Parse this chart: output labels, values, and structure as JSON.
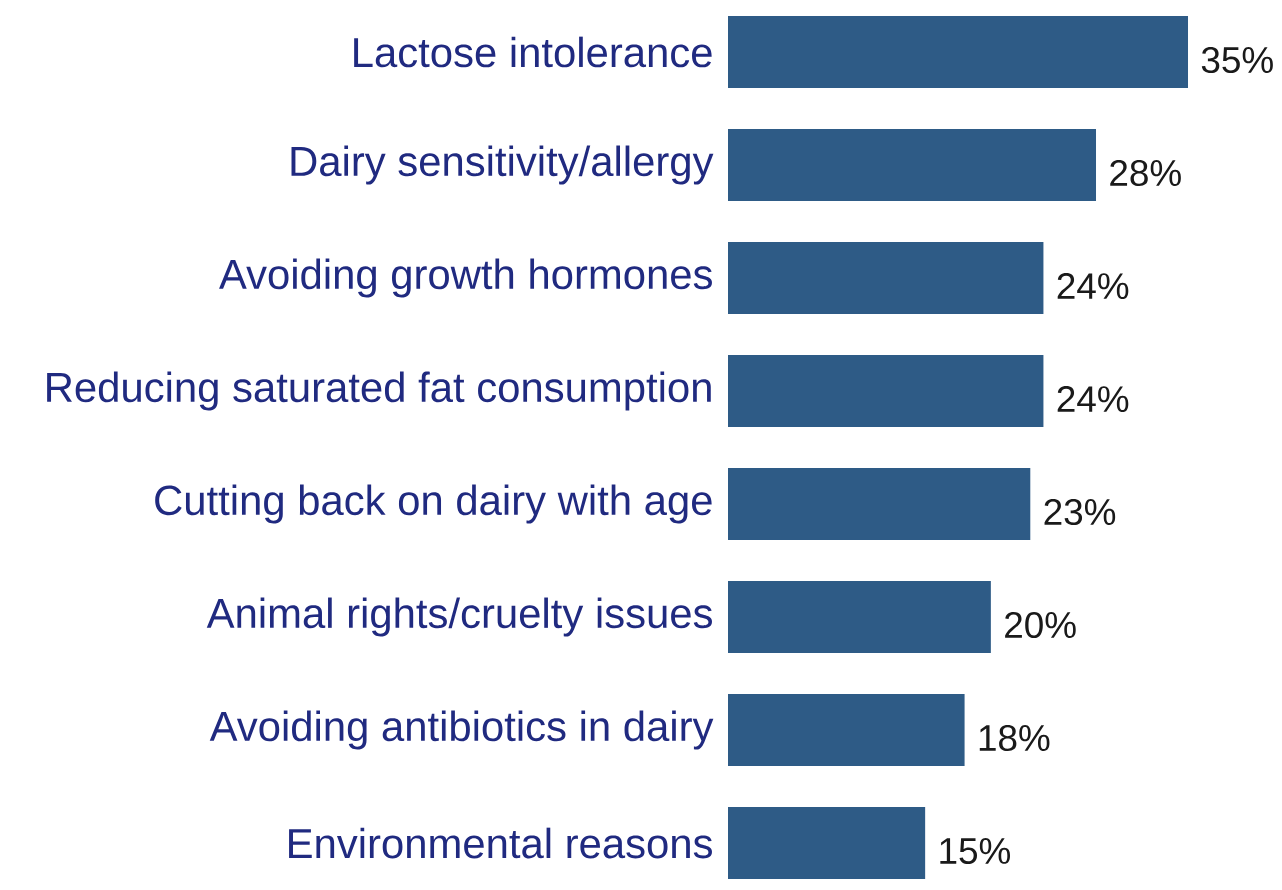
{
  "chart_data": {
    "type": "bar",
    "orientation": "horizontal",
    "categories": [
      "Lactose intolerance",
      "Dairy sensitivity/allergy",
      "Avoiding growth hormones",
      "Reducing saturated fat consumption",
      "Cutting back on dairy with age",
      "Animal rights/cruelty issues",
      "Avoiding antibiotics in dairy",
      "Environmental reasons"
    ],
    "values": [
      35,
      28,
      24,
      24,
      23,
      20,
      18,
      15
    ],
    "color": "#2e5b86",
    "value_labels": [
      "35%",
      "28%",
      "24%",
      "24%",
      "23%",
      "20%",
      "18%",
      "15%"
    ]
  }
}
